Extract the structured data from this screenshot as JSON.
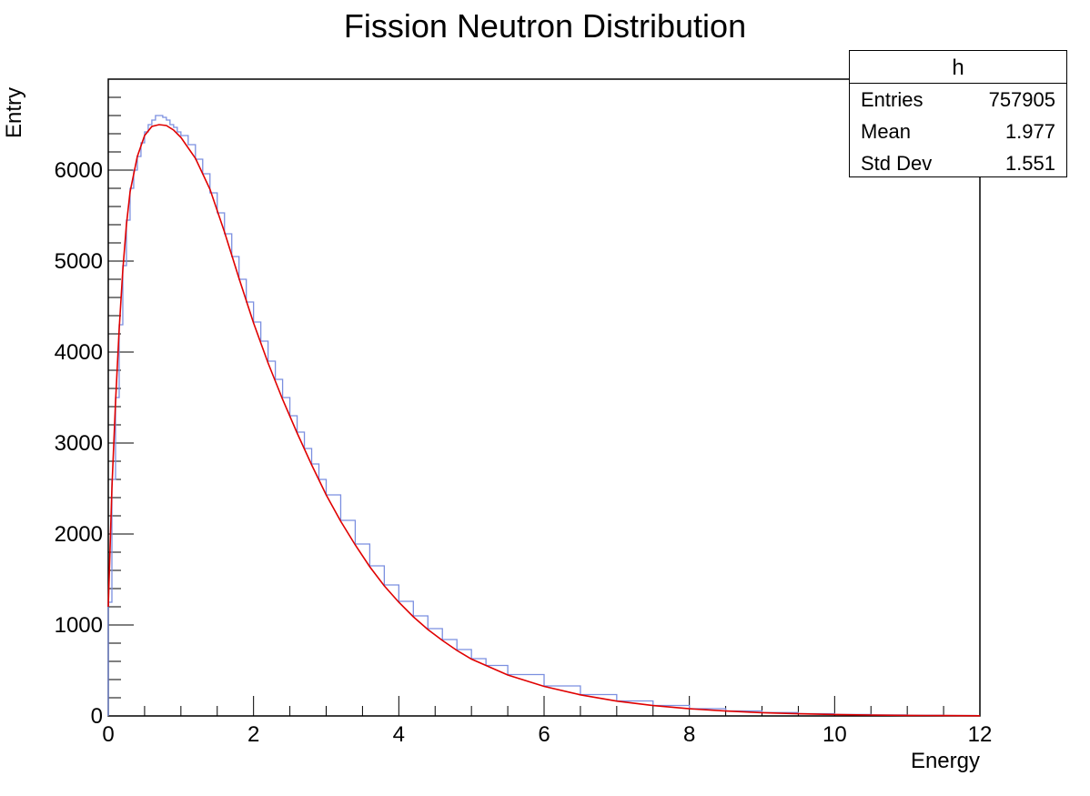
{
  "chart_data": {
    "type": "histogram",
    "title": "Fission Neutron Distribution",
    "xlabel": "Energy",
    "ylabel": "Entry",
    "xlim": [
      0,
      12
    ],
    "ylim": [
      0,
      7000
    ],
    "xticks": [
      "0",
      "2",
      "4",
      "6",
      "8",
      "10",
      "12"
    ],
    "yticks": [
      "0",
      "1000",
      "2000",
      "3000",
      "4000",
      "5000",
      "6000"
    ],
    "series": [
      {
        "name": "h",
        "style": "step-histogram",
        "color": "#7b8fe0",
        "points": [
          [
            0.0,
            1250
          ],
          [
            0.05,
            2600
          ],
          [
            0.1,
            3500
          ],
          [
            0.15,
            4300
          ],
          [
            0.2,
            4950
          ],
          [
            0.25,
            5450
          ],
          [
            0.3,
            5800
          ],
          [
            0.35,
            6000
          ],
          [
            0.4,
            6150
          ],
          [
            0.45,
            6300
          ],
          [
            0.5,
            6420
          ],
          [
            0.55,
            6500
          ],
          [
            0.6,
            6550
          ],
          [
            0.65,
            6600
          ],
          [
            0.7,
            6600
          ],
          [
            0.75,
            6580
          ],
          [
            0.8,
            6550
          ],
          [
            0.85,
            6500
          ],
          [
            0.9,
            6470
          ],
          [
            0.95,
            6420
          ],
          [
            1.0,
            6380
          ],
          [
            1.1,
            6280
          ],
          [
            1.2,
            6120
          ],
          [
            1.3,
            5960
          ],
          [
            1.4,
            5750
          ],
          [
            1.5,
            5530
          ],
          [
            1.6,
            5300
          ],
          [
            1.7,
            5050
          ],
          [
            1.8,
            4800
          ],
          [
            1.9,
            4550
          ],
          [
            2.0,
            4330
          ],
          [
            2.1,
            4120
          ],
          [
            2.2,
            3900
          ],
          [
            2.3,
            3700
          ],
          [
            2.4,
            3500
          ],
          [
            2.5,
            3300
          ],
          [
            2.6,
            3120
          ],
          [
            2.7,
            2940
          ],
          [
            2.8,
            2770
          ],
          [
            2.9,
            2600
          ],
          [
            3.0,
            2430
          ],
          [
            3.2,
            2150
          ],
          [
            3.4,
            1890
          ],
          [
            3.6,
            1650
          ],
          [
            3.8,
            1440
          ],
          [
            4.0,
            1260
          ],
          [
            4.2,
            1100
          ],
          [
            4.4,
            960
          ],
          [
            4.6,
            840
          ],
          [
            4.8,
            730
          ],
          [
            5.0,
            630
          ],
          [
            5.2,
            555
          ],
          [
            5.5,
            455
          ],
          [
            6.0,
            330
          ],
          [
            6.5,
            235
          ],
          [
            7.0,
            165
          ],
          [
            7.5,
            115
          ],
          [
            8.0,
            80
          ],
          [
            8.5,
            55
          ],
          [
            9.0,
            37
          ],
          [
            9.5,
            25
          ],
          [
            10.0,
            16
          ],
          [
            10.5,
            11
          ],
          [
            11.0,
            7
          ],
          [
            11.5,
            5
          ],
          [
            11.95,
            3
          ]
        ]
      },
      {
        "name": "fit",
        "style": "line",
        "color": "#e00000",
        "points": [
          [
            0.0,
            1200
          ],
          [
            0.05,
            2500
          ],
          [
            0.1,
            3450
          ],
          [
            0.15,
            4250
          ],
          [
            0.2,
            4900
          ],
          [
            0.25,
            5400
          ],
          [
            0.3,
            5760
          ],
          [
            0.4,
            6150
          ],
          [
            0.5,
            6380
          ],
          [
            0.6,
            6480
          ],
          [
            0.7,
            6500
          ],
          [
            0.8,
            6490
          ],
          [
            0.9,
            6440
          ],
          [
            1.0,
            6360
          ],
          [
            1.2,
            6130
          ],
          [
            1.4,
            5790
          ],
          [
            1.6,
            5320
          ],
          [
            1.8,
            4810
          ],
          [
            2.0,
            4320
          ],
          [
            2.2,
            3880
          ],
          [
            2.4,
            3480
          ],
          [
            2.6,
            3110
          ],
          [
            2.8,
            2760
          ],
          [
            3.0,
            2430
          ],
          [
            3.2,
            2140
          ],
          [
            3.4,
            1880
          ],
          [
            3.6,
            1640
          ],
          [
            3.8,
            1430
          ],
          [
            4.0,
            1250
          ],
          [
            4.2,
            1090
          ],
          [
            4.4,
            950
          ],
          [
            4.6,
            830
          ],
          [
            4.8,
            720
          ],
          [
            5.0,
            625
          ],
          [
            5.5,
            450
          ],
          [
            6.0,
            325
          ],
          [
            6.5,
            232
          ],
          [
            7.0,
            163
          ],
          [
            7.5,
            114
          ],
          [
            8.0,
            79
          ],
          [
            8.5,
            54
          ],
          [
            9.0,
            36
          ],
          [
            9.5,
            24
          ],
          [
            10.0,
            16
          ],
          [
            10.5,
            10
          ],
          [
            11.0,
            6
          ],
          [
            11.5,
            4
          ],
          [
            12.0,
            2
          ]
        ]
      }
    ],
    "stats_box": {
      "name": "h",
      "entries_label": "Entries",
      "entries_value": "757905",
      "mean_label": "Mean",
      "mean_value": "1.977",
      "stddev_label": "Std Dev",
      "stddev_value": "1.551"
    }
  }
}
